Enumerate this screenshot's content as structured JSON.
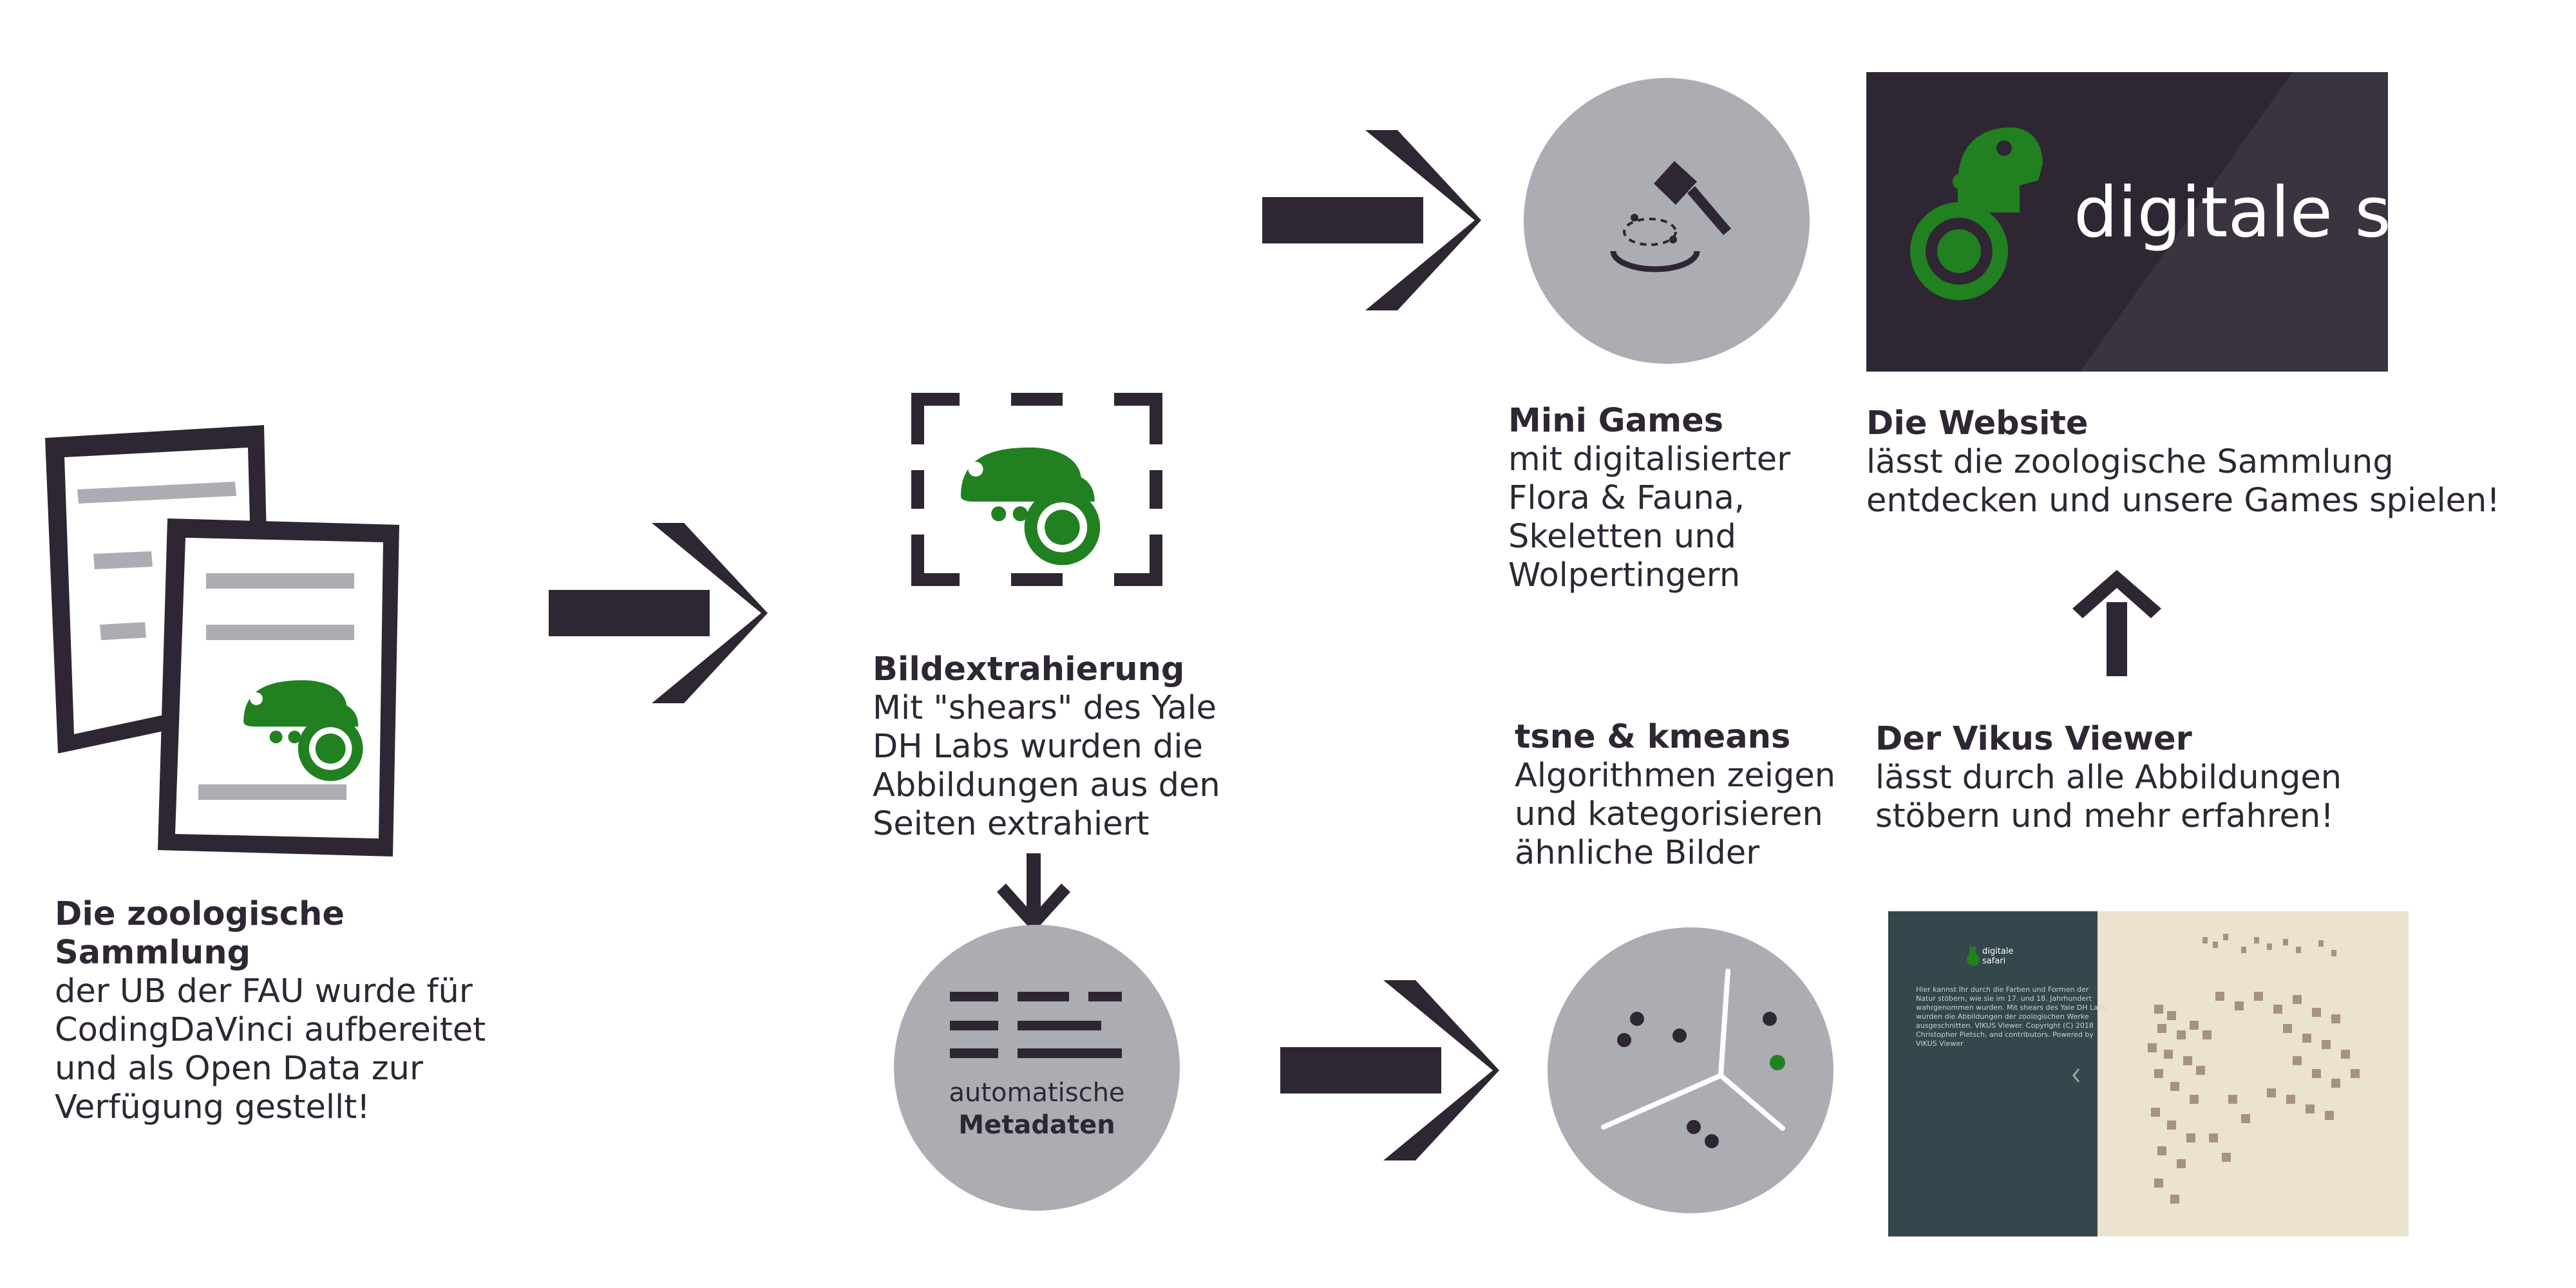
{
  "colors": {
    "dark": "#2e2733",
    "grey": "#abadb3",
    "green": "#21801f",
    "white": "#ffffff",
    "vikus_sidebar": "#34474c",
    "vikus_canvas": "#ebe3cd"
  },
  "collection": {
    "title": "Die zoologische Sammlung",
    "body": "der UB der FAU wurde für CodingDaVinci aufbereitet und als Open Data zur Verfügung gestellt!"
  },
  "extraction": {
    "title": "Bildextrahierung",
    "body": "Mit \"shears\" des Yale DH Labs wurden die Abbildungen aus den Seiten extrahiert"
  },
  "metadata": {
    "label_line1": "automatische",
    "label_line2": "Metadaten"
  },
  "minigames": {
    "title": "Mini Games",
    "body": "mit digitalisierter Flora & Fauna, Skeletten und Wolpertingern"
  },
  "website": {
    "logo_text": "digitale safari",
    "title": "Die Website",
    "body": "lässt die zoologische Sammlung entdecken und unsere Games spielen!"
  },
  "clustering": {
    "title": "tsne & kmeans",
    "body": "Algorithmen zeigen und kategorisieren ähnliche Bilder"
  },
  "vikus": {
    "title": "Der Vikus Viewer",
    "body": "lässt durch alle Abbildungen stöbern und mehr erfahren!",
    "thumbnail": {
      "logo_text": "digitale safari",
      "sidebar_text": "Hier kannst Ihr durch die Farben und Formen der Natur stöbern, wie sie im 17. und 18. Jahrhundert wahrgenommen wurden. Mit shears des Yale DH Labs wurden die Abbildungen der zoologischen Werke ausgeschnitten. VIKUS Viewer. Copyright (C) 2018 Christopher Pietsch, and contributors. Powered by VIKUS Viewer"
    }
  },
  "icons": {
    "document": "document-stack-icon",
    "arrow": "chevron-arrow-icon",
    "crop": "crop-selection-icon",
    "metadata": "text-lines-icon",
    "minigame": "hammer-game-icon",
    "cluster": "cluster-scatter-icon",
    "logo": "chameleon-logo-icon"
  }
}
